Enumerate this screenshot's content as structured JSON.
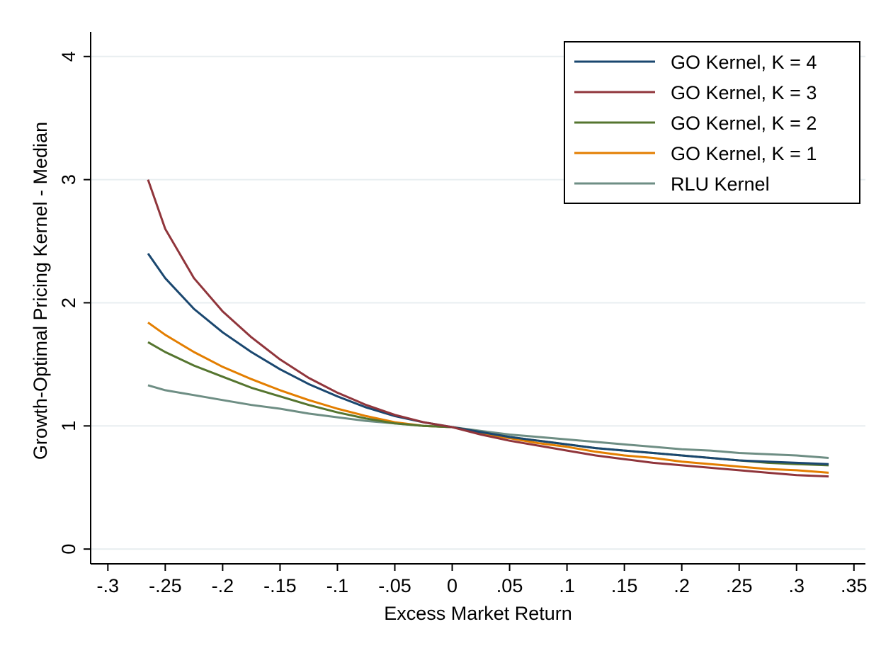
{
  "chart_data": {
    "type": "line",
    "xlabel": "Excess Market Return",
    "ylabel": "Growth-Optimal Pricing Kernel - Median",
    "xlim": [
      -0.315,
      0.36
    ],
    "ylim": [
      -0.12,
      4.2
    ],
    "x_ticks": [
      -0.3,
      -0.25,
      -0.2,
      -0.15,
      -0.1,
      -0.05,
      0,
      0.05,
      0.1,
      0.15,
      0.2,
      0.25,
      0.3,
      0.35
    ],
    "x_tick_labels": [
      "-.3",
      "-.25",
      "-.2",
      "-.15",
      "-.1",
      "-.05",
      "0",
      ".05",
      ".1",
      ".15",
      ".2",
      ".25",
      ".3",
      ".35"
    ],
    "y_ticks": [
      0,
      1,
      2,
      3,
      4
    ],
    "y_tick_labels": [
      "0",
      "1",
      "2",
      "3",
      "4"
    ],
    "grid": "horizontal",
    "legend_position": "top-right",
    "x": [
      -0.265,
      -0.25,
      -0.225,
      -0.2,
      -0.175,
      -0.15,
      -0.125,
      -0.1,
      -0.075,
      -0.05,
      -0.025,
      0,
      0.025,
      0.05,
      0.075,
      0.1,
      0.125,
      0.15,
      0.175,
      0.2,
      0.225,
      0.25,
      0.275,
      0.3,
      0.328
    ],
    "series": [
      {
        "name": "GO Kernel, K = 4",
        "color": "#1a476f",
        "values": [
          2.4,
          2.2,
          1.95,
          1.76,
          1.6,
          1.46,
          1.34,
          1.24,
          1.15,
          1.08,
          1.03,
          0.99,
          0.95,
          0.91,
          0.88,
          0.85,
          0.82,
          0.8,
          0.78,
          0.76,
          0.74,
          0.72,
          0.71,
          0.7,
          0.69
        ]
      },
      {
        "name": "GO Kernel, K = 3",
        "color": "#90353b",
        "values": [
          3.0,
          2.6,
          2.2,
          1.93,
          1.72,
          1.54,
          1.39,
          1.27,
          1.17,
          1.09,
          1.03,
          0.99,
          0.93,
          0.88,
          0.84,
          0.8,
          0.76,
          0.73,
          0.7,
          0.68,
          0.66,
          0.64,
          0.62,
          0.6,
          0.59
        ]
      },
      {
        "name": "GO Kernel, K = 2",
        "color": "#55752f",
        "values": [
          1.68,
          1.6,
          1.49,
          1.4,
          1.31,
          1.24,
          1.17,
          1.11,
          1.06,
          1.02,
          1.0,
          0.99,
          0.95,
          0.91,
          0.88,
          0.85,
          0.82,
          0.8,
          0.78,
          0.76,
          0.74,
          0.72,
          0.7,
          0.69,
          0.68
        ]
      },
      {
        "name": "GO Kernel, K = 1",
        "color": "#e37e00",
        "values": [
          1.84,
          1.74,
          1.6,
          1.48,
          1.38,
          1.29,
          1.21,
          1.14,
          1.08,
          1.03,
          1.0,
          0.99,
          0.94,
          0.9,
          0.86,
          0.83,
          0.79,
          0.76,
          0.74,
          0.71,
          0.69,
          0.67,
          0.65,
          0.64,
          0.62
        ]
      },
      {
        "name": "RLU Kernel",
        "color": "#6e8e84",
        "values": [
          1.33,
          1.29,
          1.25,
          1.21,
          1.17,
          1.14,
          1.1,
          1.07,
          1.04,
          1.02,
          1.0,
          0.99,
          0.96,
          0.93,
          0.91,
          0.89,
          0.87,
          0.85,
          0.83,
          0.81,
          0.8,
          0.78,
          0.77,
          0.76,
          0.74
        ]
      }
    ]
  }
}
